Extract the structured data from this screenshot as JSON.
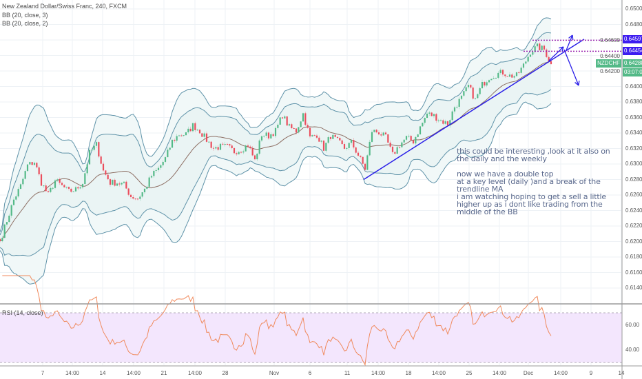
{
  "header": {
    "title": "New Zealand Dollar/Swiss Franc, 240, FXCM",
    "indicators": [
      "BB (20, close, 3)",
      "BB (20, close, 2)"
    ]
  },
  "rsi_label": "RSI (14, close)",
  "price_tags": {
    "level_high": "0.64597",
    "level_low": "0.64454",
    "symbol": "NZDCHF",
    "last_price": "0.64288",
    "countdown": "03:07:05"
  },
  "annotation": "this could be interesting ,look at it also on\nthe daily and the weekly\n\nnow we have a double top\nat a key level (daily )and a break of the\ntrendline MA\ni am watching hoping to get a sell a little\nhigher up as i dont like trading from the\nmiddle of the BB",
  "colors": {
    "up": "#53b987",
    "down": "#eb4d5c",
    "band": "#5e92a8",
    "band_fill": "#eaf4f4",
    "basis": "#8d6e63",
    "drawing": "#2a1fe8",
    "level": "#9c27b0",
    "rsi_line": "#f08a5d",
    "rsi_fill": "#f3e6fd"
  },
  "chart_data": {
    "type": "candlestick",
    "title": "New Zealand Dollar/Swiss Franc, 240, FXCM",
    "ylim": [
      0.612,
      0.651
    ],
    "y_ticks": [
      "0.65000",
      "0.64800",
      "0.64600",
      "0.64400",
      "0.64200",
      "0.64000",
      "0.63800",
      "0.63600",
      "0.63400",
      "0.63200",
      "0.63000",
      "0.62800",
      "0.62600",
      "0.62400",
      "0.62200",
      "0.62000",
      "0.61800",
      "0.61600",
      "0.61400"
    ],
    "x_ticks": [
      "7",
      "14:00",
      "14",
      "14:00",
      "21",
      "14:00",
      "28",
      "Nov",
      "6",
      "11",
      "14:00",
      "18",
      "14:00",
      "25",
      "14:00",
      "Dec",
      "14:00",
      "9",
      "14"
    ],
    "closes": [
      0.62004,
      0.62271,
      0.62538,
      0.62716,
      0.62982,
      0.63027,
      0.6276,
      0.626,
      0.62787,
      0.62716,
      0.62644,
      0.62671,
      0.6276,
      0.63142,
      0.63249,
      0.62911,
      0.6276,
      0.6276,
      0.62733,
      0.62582,
      0.62556,
      0.62671,
      0.62849,
      0.62938,
      0.63071,
      0.63293,
      0.63382,
      0.63382,
      0.63498,
      0.63427,
      0.63311,
      0.63204,
      0.63222,
      0.63222,
      0.6316,
      0.63187,
      0.63249,
      0.63044,
      0.63382,
      0.63364,
      0.63427,
      0.63631,
      0.63471,
      0.63427,
      0.63649,
      0.63338,
      0.63382,
      0.63204,
      0.63364,
      0.63293,
      0.63204,
      0.63276,
      0.63116,
      0.62938,
      0.63427,
      0.63409,
      0.63338,
      0.63116,
      0.63249,
      0.63338,
      0.63293,
      0.63471,
      0.63649,
      0.63622,
      0.6356,
      0.63516,
      0.63738,
      0.63853,
      0.64004,
      0.63827,
      0.64022,
      0.6412,
      0.64156,
      0.64182,
      0.64138,
      0.64138,
      0.64271,
      0.64449,
      0.64511,
      0.64476,
      0.64288
    ],
    "indicators": {
      "bollinger": [
        {
          "length": 20,
          "source": "close",
          "mult": 3
        },
        {
          "length": 20,
          "source": "close",
          "mult": 2
        }
      ],
      "rsi": {
        "length": 14,
        "source": "close",
        "levels": [
          70,
          30
        ],
        "ticks": [
          "60.00",
          "40.00"
        ]
      }
    },
    "drawings": {
      "horizontal_levels": [
        0.64597,
        0.64454
      ],
      "trendline_from_price": 0.628,
      "trendline_to_price": 0.6461
    }
  }
}
